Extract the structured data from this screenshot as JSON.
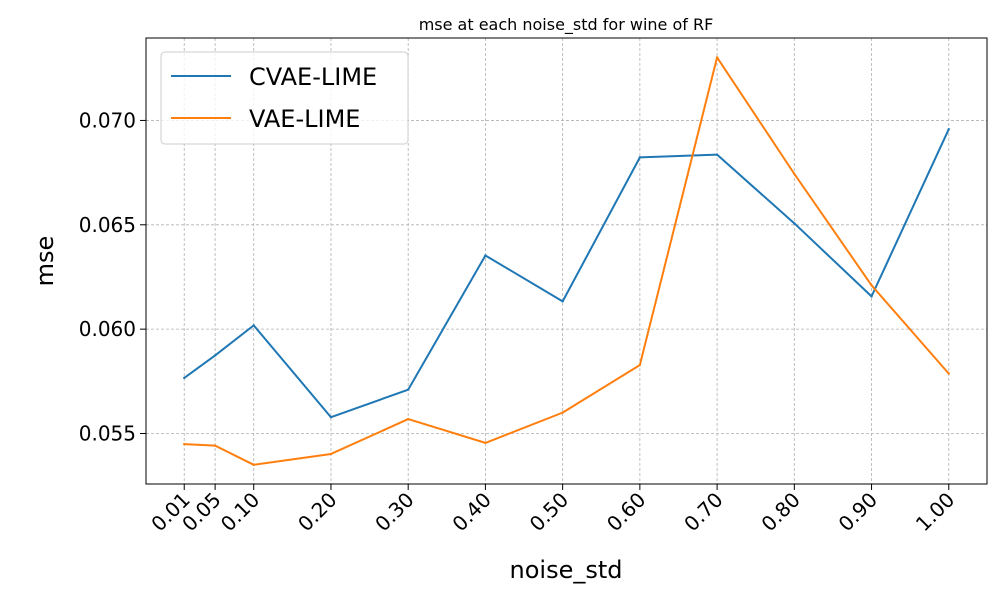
{
  "chart_data": {
    "type": "line",
    "title": "mse at each noise_std for wine of RF",
    "xlabel": "noise_std",
    "ylabel": "mse",
    "x": [
      0.01,
      0.05,
      0.1,
      0.2,
      0.3,
      0.4,
      0.5,
      0.6,
      0.7,
      0.8,
      0.9,
      1.0
    ],
    "x_tick_labels": [
      "0.01",
      "0.05",
      "0.10",
      "0.20",
      "0.30",
      "0.40",
      "0.50",
      "0.60",
      "0.70",
      "0.80",
      "0.90",
      "1.00"
    ],
    "y_ticks": [
      0.055,
      0.06,
      0.065,
      0.07
    ],
    "y_tick_labels": [
      "0.055",
      "0.060",
      "0.065",
      "0.070"
    ],
    "xlim": [
      -0.0395,
      1.0495
    ],
    "ylim": [
      0.05258,
      0.07395
    ],
    "grid": true,
    "legend_position": "upper-left",
    "series": [
      {
        "name": "CVAE-LIME",
        "color": "#1f77b4",
        "values": [
          0.05766,
          0.05874,
          0.06018,
          0.05578,
          0.0571,
          0.06353,
          0.06133,
          0.06823,
          0.06836,
          0.06507,
          0.06157,
          0.06958
        ]
      },
      {
        "name": "VAE-LIME",
        "color": "#ff7f0e",
        "values": [
          0.05449,
          0.05442,
          0.0535,
          0.05402,
          0.05569,
          0.05455,
          0.056,
          0.05828,
          0.07302,
          0.06744,
          0.0621,
          0.05787
        ]
      }
    ]
  }
}
